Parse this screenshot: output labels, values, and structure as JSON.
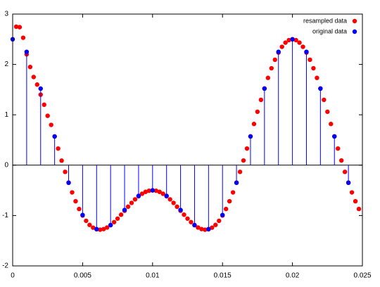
{
  "chart_data": {
    "type": "scatter",
    "xlim": [
      0,
      0.025
    ],
    "ylim": [
      -2,
      3
    ],
    "xticks": [
      0,
      0.005,
      0.01,
      0.015,
      0.02,
      0.025
    ],
    "yticks": [
      -2,
      -1,
      0,
      1,
      2,
      3
    ],
    "legend": "upper right",
    "series": [
      {
        "name": "resampled data",
        "color": "#ff0000",
        "x": [
          0.00025,
          0.0005,
          0.00075,
          0.001,
          0.00125,
          0.0015,
          0.00175,
          0.002,
          0.00225,
          0.0025,
          0.00275,
          0.003,
          0.00325,
          0.0035,
          0.00375,
          0.004,
          0.00425,
          0.0045,
          0.00475,
          0.005,
          0.00525,
          0.0055,
          0.00575,
          0.006,
          0.00625,
          0.0065,
          0.00675,
          0.007,
          0.00725,
          0.0075,
          0.00775,
          0.008,
          0.00825,
          0.0085,
          0.00875,
          0.009,
          0.00925,
          0.0095,
          0.00975,
          0.01,
          0.01025,
          0.0105,
          0.01075,
          0.011,
          0.01125,
          0.0115,
          0.01175,
          0.012,
          0.01225,
          0.0125,
          0.01275,
          0.013,
          0.01325,
          0.0135,
          0.01375,
          0.014,
          0.01425,
          0.0145,
          0.01475,
          0.015,
          0.01525,
          0.0155,
          0.01575,
          0.016,
          0.01625,
          0.0165,
          0.01675,
          0.017,
          0.01725,
          0.0175,
          0.01775,
          0.018,
          0.01825,
          0.0185,
          0.01875,
          0.019,
          0.01925,
          0.0195,
          0.01975,
          0.02,
          0.02025,
          0.0205,
          0.02075,
          0.021,
          0.02125,
          0.0215,
          0.02175,
          0.022,
          0.02225,
          0.0225,
          0.02275,
          0.023,
          0.02325,
          0.0235,
          0.02375,
          0.024,
          0.02425,
          0.0245,
          0.02475
        ],
        "values": [
          2.75,
          2.74,
          2.53,
          2.2,
          1.95,
          1.75,
          1.6,
          1.4,
          1.2,
          0.98,
          0.8,
          0.57,
          0.33,
          0.09,
          -0.133,
          -0.346,
          -0.541,
          -0.716,
          -0.87,
          -1,
          -1.105,
          -1.186,
          -1.241,
          -1.273,
          -1.281,
          -1.269,
          -1.238,
          -1.191,
          -1.131,
          -1.061,
          -0.984,
          -0.905,
          -0.825,
          -0.749,
          -0.679,
          -0.618,
          -0.568,
          -0.53,
          -0.508,
          -0.5,
          -0.508,
          -0.53,
          -0.568,
          -0.618,
          -0.679,
          -0.749,
          -0.825,
          -0.905,
          -0.984,
          -1.061,
          -1.131,
          -1.191,
          -1.238,
          -1.269,
          -1.281,
          -1.273,
          -1.241,
          -1.186,
          -1.105,
          -1,
          -0.87,
          -0.716,
          -0.541,
          -0.346,
          -0.133,
          0.093,
          0.33,
          0.573,
          0.818,
          1.061,
          1.297,
          1.523,
          1.733,
          1.924,
          2.093,
          2.236,
          2.35,
          2.433,
          2.483,
          2.5,
          2.483,
          2.433,
          2.35,
          2.236,
          2.093,
          1.924,
          1.733,
          1.523,
          1.297,
          1.061,
          0.818,
          0.573,
          0.33,
          0.093,
          -0.133,
          -0.346,
          -0.541,
          -0.716,
          -0.87
        ]
      },
      {
        "name": "original data",
        "color": "#0000ff",
        "stem": true,
        "x": [
          0,
          0.001,
          0.002,
          0.003,
          0.004,
          0.005,
          0.006,
          0.007,
          0.008,
          0.009,
          0.01,
          0.011,
          0.012,
          0.013,
          0.014,
          0.015,
          0.016,
          0.017,
          0.018,
          0.019,
          0.02,
          0.021,
          0.022,
          0.023,
          0.024
        ],
        "values": [
          2.5,
          2.25,
          1.52,
          0.57,
          -0.35,
          -0.99,
          -1.27,
          -1.19,
          -0.89,
          -0.61,
          -0.5,
          -0.61,
          -0.89,
          -1.19,
          -1.27,
          -0.99,
          -0.35,
          0.57,
          1.52,
          2.25,
          2.5,
          2.25,
          1.52,
          0.57,
          -0.35
        ]
      }
    ]
  }
}
